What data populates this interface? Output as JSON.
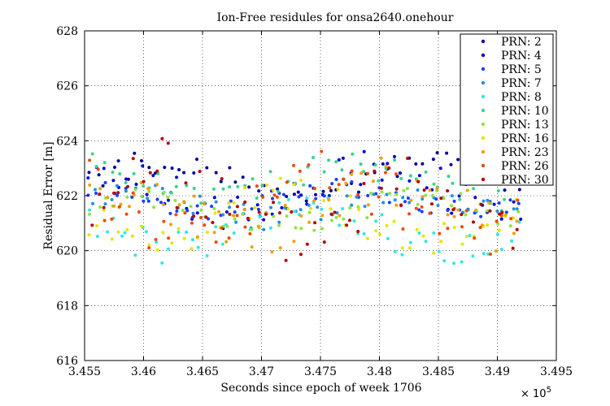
{
  "chart_data": {
    "type": "scatter",
    "title": "Ion-Free residules for onsa2640.onehour",
    "xlabel": "Seconds since epoch of week 1706",
    "ylabel": "Residual Error [m]",
    "x_exponent_label": "× 10",
    "x_exponent_power": "5",
    "xlim": [
      345500,
      349500
    ],
    "ylim": [
      616,
      628
    ],
    "grid": true,
    "legend_position": "top-right",
    "x_ticks": [
      345500,
      346000,
      346500,
      347000,
      347500,
      348000,
      348500,
      349000,
      349500
    ],
    "x_tick_labels": [
      "3.455",
      "3.46",
      "3.465",
      "3.47",
      "3.475",
      "3.48",
      "3.485",
      "3.49",
      "3.495"
    ],
    "y_ticks": [
      616,
      618,
      620,
      622,
      624,
      626,
      628
    ],
    "y_tick_labels": [
      "616",
      "618",
      "620",
      "622",
      "624",
      "626",
      "628"
    ],
    "x_start": 345550,
    "x_end": 349180,
    "points_per_series": 60,
    "series": [
      {
        "name": "PRN: 2",
        "color": "#00009A",
        "base": 622.6,
        "amp": 0.6,
        "spread": 0.45,
        "phase": 0.0
      },
      {
        "name": "PRN: 4",
        "color": "#0000D8",
        "base": 622.2,
        "amp": 0.8,
        "spread": 0.7,
        "phase": 1.3
      },
      {
        "name": "PRN: 5",
        "color": "#1A3CFF",
        "base": 621.9,
        "amp": 0.4,
        "spread": 0.35,
        "phase": 2.1
      },
      {
        "name": "PRN: 7",
        "color": "#1E90E6",
        "base": 621.7,
        "amp": 0.5,
        "spread": 0.45,
        "phase": 0.7
      },
      {
        "name": "PRN: 8",
        "color": "#33E6E6",
        "base": 620.8,
        "amp": 0.7,
        "spread": 0.6,
        "phase": 2.8
      },
      {
        "name": "PRN: 10",
        "color": "#3CD28C",
        "base": 622.6,
        "amp": 0.5,
        "spread": 0.45,
        "phase": 1.9
      },
      {
        "name": "PRN: 13",
        "color": "#8CE63C",
        "base": 621.4,
        "amp": 0.5,
        "spread": 0.45,
        "phase": 0.4
      },
      {
        "name": "PRN: 16",
        "color": "#E6E600",
        "base": 621.2,
        "amp": 0.8,
        "spread": 0.7,
        "phase": 3.3
      },
      {
        "name": "PRN: 23",
        "color": "#F0A000",
        "base": 621.6,
        "amp": 0.9,
        "spread": 0.9,
        "phase": 1.1
      },
      {
        "name": "PRN: 26",
        "color": "#F04A00",
        "base": 621.7,
        "amp": 1.0,
        "spread": 1.1,
        "phase": 2.4
      },
      {
        "name": "PRN: 30",
        "color": "#B40000",
        "base": 621.8,
        "amp": 1.1,
        "spread": 1.3,
        "phase": 0.2
      }
    ]
  }
}
